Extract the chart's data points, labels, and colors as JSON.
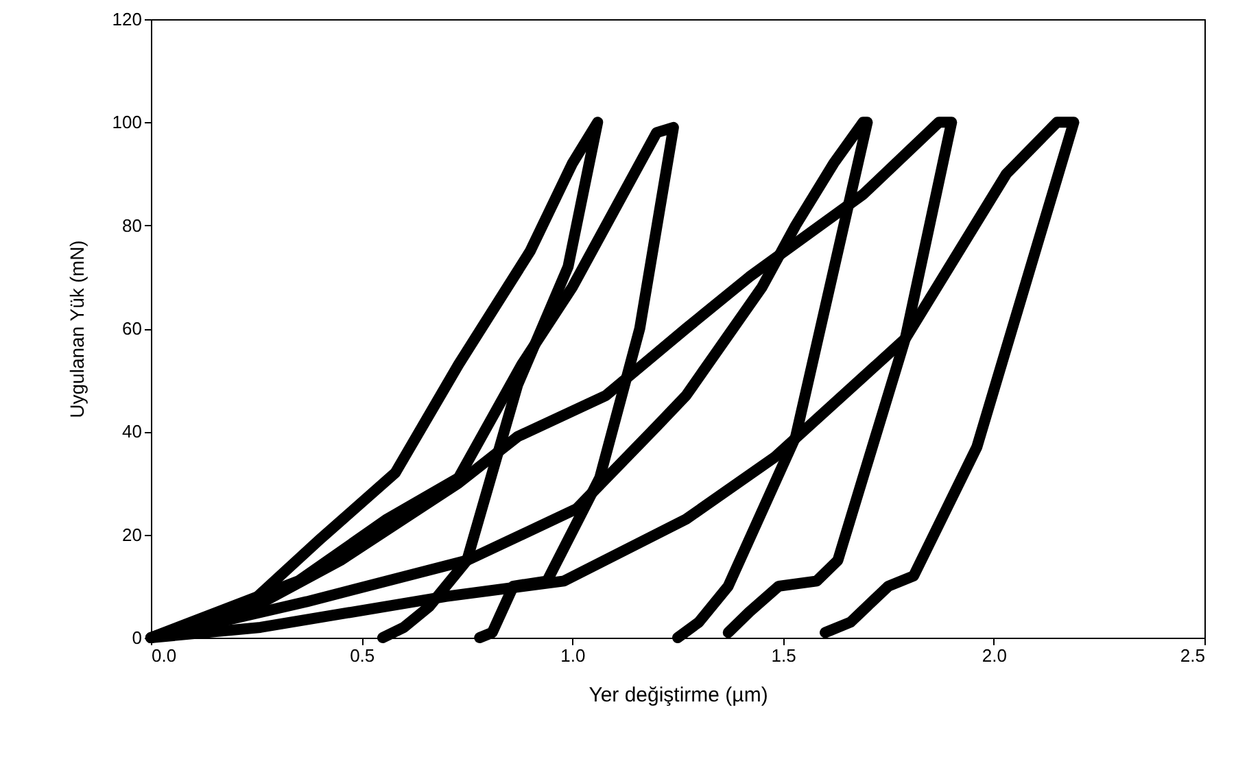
{
  "chart_data": {
    "type": "line",
    "xlabel": "Yer değiştirme (µm)",
    "ylabel": "Uygulanan Yük (mN)",
    "xlim": [
      0,
      2.5
    ],
    "ylim": [
      0,
      120
    ],
    "xticks": [
      {
        "value": 0,
        "label": "0.0"
      },
      {
        "value": 0.5,
        "label": "0.5"
      },
      {
        "value": 1,
        "label": "1.0"
      },
      {
        "value": 1.5,
        "label": "1.5"
      },
      {
        "value": 2,
        "label": "2.0"
      },
      {
        "value": 2.5,
        "label": "2.5"
      }
    ],
    "yticks": [
      0,
      20,
      40,
      60,
      80,
      100,
      120
    ],
    "grid": false,
    "line_style": "solid",
    "series": [
      {
        "color": "#000000",
        "x": [
          0,
          0.24,
          0.4,
          0.58,
          0.73,
          0.9,
          1.0,
          1.06,
          1.06,
          0.99,
          0.87,
          0.75,
          0.66,
          0.6,
          0.55
        ],
        "values": [
          0,
          7,
          19,
          32,
          53,
          75,
          92,
          100,
          100,
          72,
          49,
          15,
          6,
          2,
          0
        ]
      },
      {
        "color": "#000000",
        "x": [
          0,
          0.35,
          0.56,
          0.73,
          0.88,
          1.0,
          1.2,
          1.24,
          1.24,
          1.16,
          1.065,
          0.94,
          0.86,
          0.81,
          0.78
        ],
        "values": [
          0,
          11,
          23,
          31,
          53,
          68,
          98,
          99,
          99,
          60,
          31,
          11,
          10,
          1,
          0
        ]
      },
      {
        "color": "#000000",
        "x": [
          0,
          0.37,
          0.75,
          1.01,
          1.2,
          1.27,
          1.45,
          1.53,
          1.62,
          1.69,
          1.7,
          1.53,
          1.37,
          1.3,
          1.25
        ],
        "values": [
          0,
          7,
          15,
          25,
          41,
          47,
          68,
          80,
          92,
          100,
          100,
          39,
          10,
          3,
          0
        ]
      },
      {
        "color": "#000000",
        "x": [
          0,
          0.2,
          0.45,
          0.73,
          0.87,
          1.08,
          1.27,
          1.42,
          1.69,
          1.87,
          1.9,
          1.79,
          1.63,
          1.58,
          1.49,
          1.42,
          1.37
        ],
        "values": [
          0,
          4,
          15,
          30,
          39,
          47,
          60,
          70,
          86,
          100,
          100,
          58,
          15,
          11,
          10,
          5,
          1
        ]
      },
      {
        "color": "#000000",
        "x": [
          0,
          0.26,
          0.7,
          0.98,
          1.27,
          1.48,
          1.79,
          2.03,
          2.15,
          2.19,
          1.96,
          1.81,
          1.75,
          1.66,
          1.6
        ],
        "values": [
          0,
          2,
          8,
          11,
          23,
          35,
          58,
          90,
          100,
          100,
          37,
          12,
          10,
          3,
          1
        ]
      }
    ]
  }
}
